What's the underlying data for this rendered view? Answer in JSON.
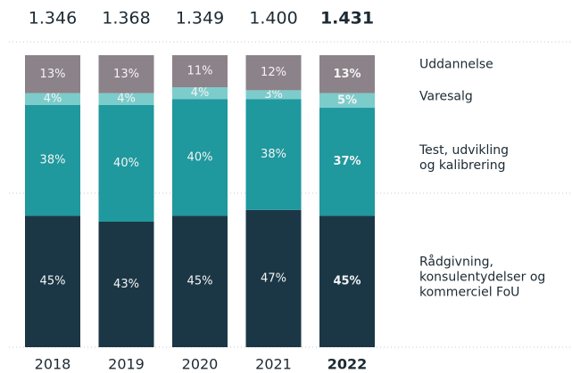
{
  "chart_data": {
    "type": "stacked_bar",
    "categories": [
      "2018",
      "2019",
      "2020",
      "2021",
      "2022"
    ],
    "highlight": "2022",
    "totals": {
      "values": [
        1346,
        1368,
        1349,
        1400,
        1431
      ],
      "value_labels": [
        "1.346",
        "1.368",
        "1.349",
        "1.400",
        "1.431"
      ]
    },
    "ylim": [
      0,
      100
    ],
    "series": [
      {
        "name": "Rådgivning,\nkonsulentydelser og\nkommerciel FoU",
        "color": "#1b3746",
        "values": [
          45,
          43,
          45,
          47,
          45
        ],
        "value_labels": [
          "45%",
          "43%",
          "45%",
          "47%",
          "45%"
        ]
      },
      {
        "name": "Test, udvikling\nog kalibrering",
        "color": "#1f989e",
        "values": [
          38,
          40,
          40,
          38,
          37
        ],
        "value_labels": [
          "38%",
          "40%",
          "40%",
          "38%",
          "37%"
        ]
      },
      {
        "name": "Varesalg",
        "color": "#7ccccc",
        "values": [
          4,
          4,
          4,
          3,
          5
        ],
        "value_labels": [
          "4%",
          "4%",
          "4%",
          "3%",
          "5%"
        ]
      },
      {
        "name": "Uddannelse",
        "color": "#8c8289",
        "values": [
          13,
          13,
          11,
          12,
          13
        ],
        "value_labels": [
          "13%",
          "13%",
          "11%",
          "12%",
          "13%"
        ]
      }
    ]
  }
}
